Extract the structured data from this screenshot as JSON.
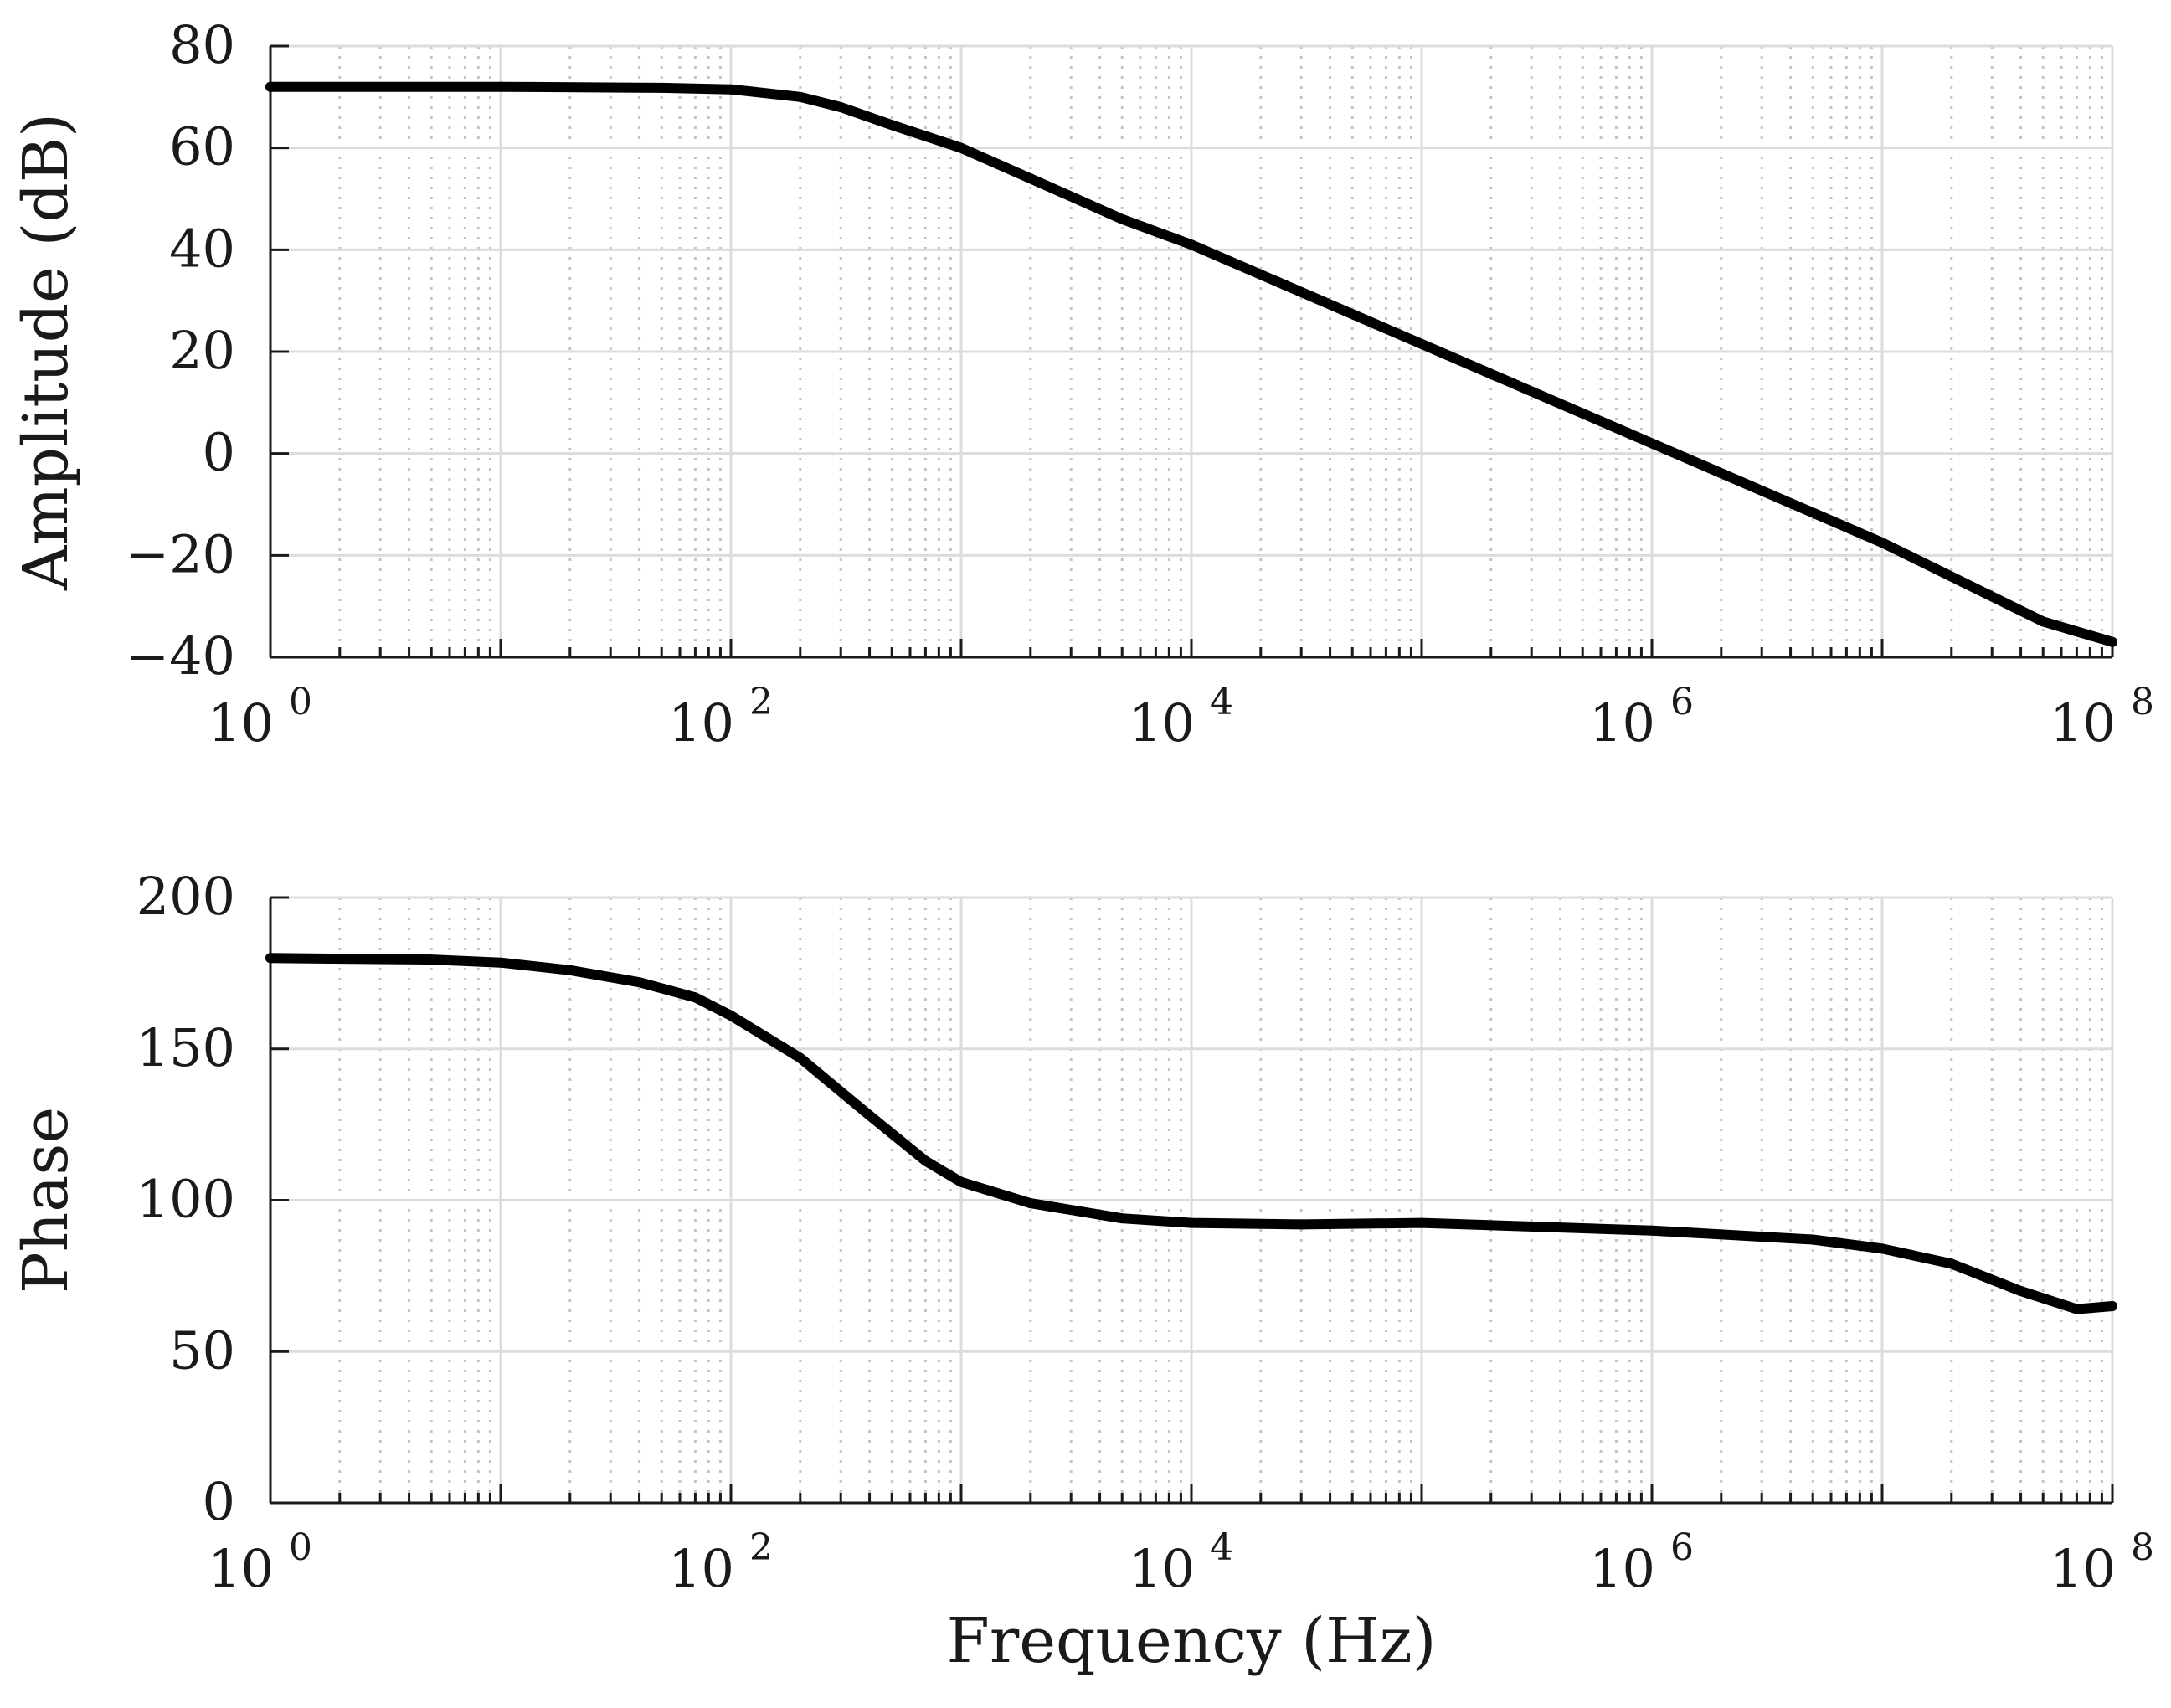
{
  "chart_data": [
    {
      "type": "line",
      "xscale": "log",
      "xlim": [
        1,
        100000000
      ],
      "ylim": [
        -40,
        80
      ],
      "ylabel": "Amplitude (dB)",
      "xlabel": "",
      "yticks": [
        80,
        60,
        40,
        20,
        0,
        -20,
        -40
      ],
      "ytick_labels": [
        "80",
        "60",
        "40",
        "20",
        "0",
        "−20",
        "−40"
      ],
      "xticks": [
        {
          "base": "10",
          "exp": "0",
          "value": 1
        },
        {
          "base": "10",
          "exp": "2",
          "value": 100
        },
        {
          "base": "10",
          "exp": "4",
          "value": 10000
        },
        {
          "base": "10",
          "exp": "6",
          "value": 1000000
        },
        {
          "base": "10",
          "exp": "8",
          "value": 100000000
        }
      ],
      "grid": true,
      "line_color": "#000000",
      "series": [
        {
          "x": [
            1,
            10,
            50,
            100,
            200,
            300,
            500,
            1000,
            2000,
            5000,
            10000,
            100000,
            1000000,
            10000000,
            50000000,
            100000000
          ],
          "y": [
            72,
            72,
            71.8,
            71.5,
            70,
            68,
            64.5,
            60,
            54,
            46,
            41,
            21.5,
            2,
            -17.5,
            -33,
            -37
          ]
        }
      ]
    },
    {
      "type": "line",
      "xscale": "log",
      "xlim": [
        1,
        100000000
      ],
      "ylim": [
        0,
        200
      ],
      "ylabel": "Phase",
      "xlabel": "Frequency (Hz)",
      "yticks": [
        200,
        150,
        100,
        50,
        0
      ],
      "ytick_labels": [
        "200",
        "150",
        "100",
        "50",
        "0"
      ],
      "xticks": [
        {
          "base": "10",
          "exp": "0",
          "value": 1
        },
        {
          "base": "10",
          "exp": "2",
          "value": 100
        },
        {
          "base": "10",
          "exp": "4",
          "value": 10000
        },
        {
          "base": "10",
          "exp": "6",
          "value": 1000000
        },
        {
          "base": "10",
          "exp": "8",
          "value": 100000000
        }
      ],
      "grid": true,
      "line_color": "#000000",
      "series": [
        {
          "x": [
            1,
            5,
            10,
            20,
            40,
            70,
            100,
            200,
            400,
            700,
            1000,
            2000,
            5000,
            10000,
            30000,
            100000,
            1000000,
            5000000,
            10000000,
            20000000,
            40000000,
            70000000,
            100000000
          ],
          "y": [
            180,
            179.5,
            178.5,
            176,
            172,
            167,
            161,
            147,
            128,
            113,
            106,
            99,
            94,
            92.5,
            92,
            92.5,
            90,
            87,
            84,
            79,
            70,
            64,
            65
          ]
        }
      ]
    }
  ]
}
